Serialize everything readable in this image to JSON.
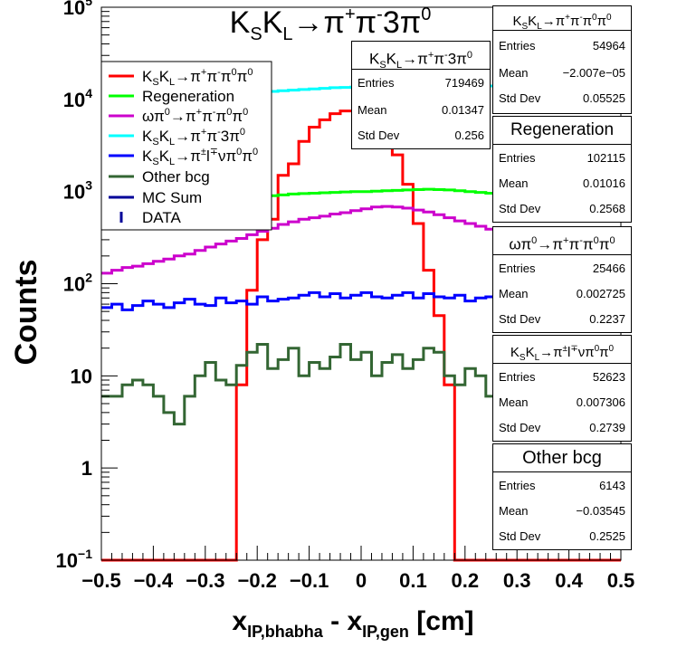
{
  "chart_data": {
    "type": "histogram",
    "title": "K_S K_L → π⁺π⁻3π⁰",
    "xlabel": "x_IP,bhabha - x_IP,gen [cm]",
    "ylabel": "Counts",
    "xlim": [
      -0.5,
      0.5
    ],
    "ylim": [
      0.1,
      100000
    ],
    "yscale": "log",
    "x_ticks": [
      "−0.5",
      "−0.4",
      "−0.3",
      "−0.2",
      "−0.1",
      "0",
      "0.1",
      "0.2",
      "0.3",
      "0.4",
      "0.5"
    ],
    "y_ticks": [
      {
        "value": 0.1,
        "label": "10",
        "sup": "−1"
      },
      {
        "value": 1,
        "label": "1",
        "sup": ""
      },
      {
        "value": 10,
        "label": "10",
        "sup": ""
      },
      {
        "value": 100,
        "label": "10",
        "sup": "2"
      },
      {
        "value": 1000,
        "label": "10",
        "sup": "3"
      },
      {
        "value": 10000,
        "label": "10",
        "sup": "4"
      },
      {
        "value": 100000,
        "label": "10",
        "sup": "5"
      }
    ],
    "bin_edges": {
      "min": -0.5,
      "max": 0.5,
      "nbins": 50
    },
    "legend": {
      "placement": "top-left",
      "entries": [
        {
          "label": "K_S K_L → π⁺π⁻π⁰π⁰",
          "color": "#ff0000",
          "style": "line"
        },
        {
          "label": "Regeneration",
          "color": "#00ff00",
          "style": "line"
        },
        {
          "label": "ωπ⁰ → π⁺π⁻π⁰π⁰",
          "color": "#cc00cc",
          "style": "line"
        },
        {
          "label": "K_S K_L → π⁺π⁻3π⁰",
          "color": "#00ffff",
          "style": "line"
        },
        {
          "label": "K_S K_L → π^±l^∓νπ⁰π⁰",
          "color": "#0000ff",
          "style": "line"
        },
        {
          "label": "Other bcg",
          "color": "#336633",
          "style": "line"
        },
        {
          "label": "MC Sum",
          "color": "#000099",
          "style": "line"
        },
        {
          "label": "DATA",
          "color": "#000099",
          "style": "errorbar"
        }
      ]
    },
    "series": [
      {
        "name": "K_S K_L → π⁺π⁻π⁰π⁰",
        "color": "#ff0000",
        "values": [
          0.1,
          0.1,
          0.1,
          0.1,
          0.1,
          0.1,
          0.1,
          0.1,
          0.1,
          0.1,
          0.1,
          0.1,
          0.1,
          8,
          85,
          300,
          500,
          1500,
          2000,
          3500,
          5000,
          6000,
          7000,
          7500,
          7500,
          7000,
          6000,
          4500,
          2500,
          1200,
          450,
          140,
          45,
          8,
          0.1,
          0.1,
          0.1,
          0.1,
          0.1,
          0.1,
          0.1,
          0.1,
          0.1,
          0.1,
          0.1,
          0.1,
          0.1,
          0.1,
          0.1,
          0.1
        ]
      },
      {
        "name": "Regeneration",
        "color": "#00ff00",
        "values": [
          450,
          480,
          500,
          530,
          560,
          600,
          630,
          660,
          700,
          730,
          760,
          790,
          810,
          840,
          860,
          880,
          900,
          920,
          940,
          950,
          960,
          970,
          980,
          990,
          1000,
          1000,
          1010,
          1020,
          1030,
          1040,
          1050,
          1060,
          1050,
          1040,
          1020,
          1000,
          980,
          960,
          940,
          920,
          900,
          870,
          840,
          810,
          780,
          750,
          720,
          690,
          660,
          620
        ]
      },
      {
        "name": "ωπ⁰ → π⁺π⁻π⁰π⁰",
        "color": "#cc00cc",
        "values": [
          130,
          140,
          150,
          155,
          165,
          175,
          185,
          200,
          210,
          230,
          250,
          270,
          290,
          310,
          340,
          370,
          400,
          440,
          470,
          500,
          520,
          540,
          570,
          590,
          620,
          650,
          680,
          690,
          680,
          660,
          630,
          600,
          560,
          520,
          480,
          450,
          420,
          390,
          360,
          330,
          300,
          270,
          250,
          230,
          210,
          195,
          180,
          170,
          160,
          150
        ]
      },
      {
        "name": "K_S K_L → π⁺π⁻3π⁰",
        "color": "#00ffff",
        "values": [
          9000,
          9200,
          9400,
          9600,
          9800,
          10000,
          10200,
          10400,
          10600,
          10800,
          11000,
          11200,
          11400,
          11600,
          11800,
          12000,
          12200,
          12400,
          12600,
          12800,
          13000,
          13200,
          13400,
          13500,
          13600,
          13800,
          14000,
          14000,
          14000,
          14000,
          14000,
          14000,
          14000,
          14000,
          14000,
          14000,
          14000,
          14000,
          14000,
          14000,
          14000,
          14000,
          14000,
          14000,
          14000,
          14000,
          14000,
          14000,
          14000,
          14000
        ]
      },
      {
        "name": "K_S K_L → π^±l^∓νπ⁰π⁰",
        "color": "#0000ff",
        "values": [
          55,
          60,
          52,
          58,
          65,
          60,
          55,
          62,
          68,
          60,
          58,
          70,
          62,
          65,
          60,
          72,
          65,
          68,
          70,
          75,
          80,
          72,
          78,
          70,
          75,
          80,
          72,
          70,
          75,
          80,
          70,
          78,
          72,
          70,
          75,
          65,
          70,
          72,
          68,
          75,
          70,
          65,
          68,
          60,
          65,
          70,
          62,
          65,
          68,
          60
        ]
      },
      {
        "name": "Other bcg",
        "color": "#336633",
        "values": [
          6,
          6,
          8,
          9,
          8,
          6,
          4,
          3,
          6,
          10,
          14,
          9,
          8,
          13,
          18,
          22,
          12,
          15,
          20,
          10,
          14,
          12,
          16,
          22,
          15,
          18,
          10,
          14,
          17,
          12,
          15,
          20,
          18,
          10,
          8,
          12,
          10,
          6,
          3,
          5,
          5,
          8,
          10,
          6,
          4,
          10,
          8,
          6,
          4,
          5
        ]
      }
    ]
  },
  "main_title": {
    "base": "K_S K_L → π⁺π⁻3π⁰"
  },
  "axis_labels": {
    "y": "Counts",
    "x_main": "x",
    "x_sub": "IP,bhabha",
    "x_mid": " - x",
    "x_sub2": "IP,gen",
    "x_end": " [cm]"
  },
  "legend_text": {
    "l1": "K_S K_L → π⁺π⁻π⁰π⁰",
    "l2": "Regeneration",
    "l3": "ωπ⁰ → π⁺π⁻π⁰π⁰",
    "l4": "K_S K_L → π⁺π⁻3π⁰",
    "l5": "K_S K_L → π^±l^∓νπ⁰π⁰",
    "l6": "Other bcg",
    "l7": "MC Sum",
    "l8": "DATA"
  },
  "stat_boxes": [
    {
      "title": "K_S K_L → π⁺π⁻π⁰π⁰",
      "entries": "54964",
      "mean": "−2.007e−05",
      "std": "0.05525"
    },
    {
      "title": "K_S K_L → π⁺π⁻3π⁰",
      "entries": "719469",
      "mean": "0.01347",
      "std": "0.256"
    },
    {
      "title": "Regeneration",
      "entries": "102115",
      "mean": "0.01016",
      "std": "0.2568"
    },
    {
      "title": "ωπ⁰ → π⁺π⁻π⁰π⁰",
      "entries": "25466",
      "mean": "0.002725",
      "std": "0.2237"
    },
    {
      "title": "K_S K_L → π^±l^∓νπ⁰π⁰",
      "entries": "52623",
      "mean": "0.007306",
      "std": "0.2739"
    },
    {
      "title": "Other bcg",
      "entries": "6143",
      "mean": "−0.03545",
      "std": "0.2525"
    }
  ],
  "stat_labels": {
    "entries": "Entries",
    "mean": "Mean",
    "std": "Std Dev"
  }
}
